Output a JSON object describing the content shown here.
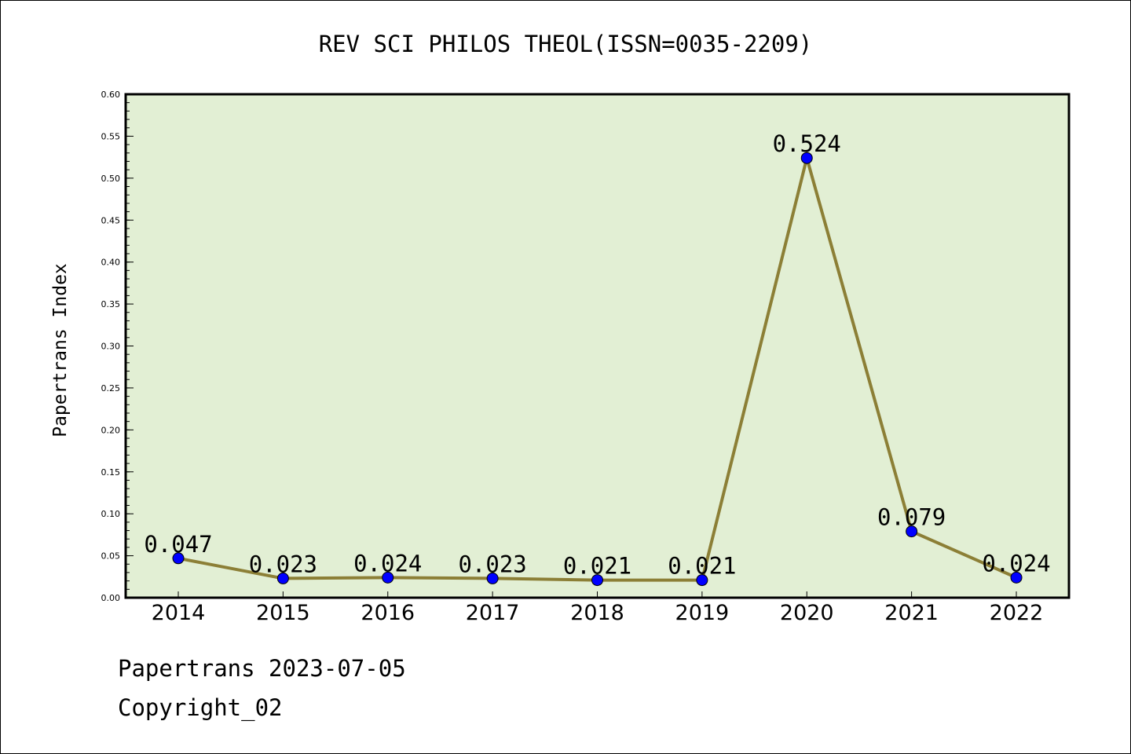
{
  "chart_data": {
    "type": "line",
    "title": "REV SCI PHILOS THEOL(ISSN=0035-2209)",
    "xlabel": "",
    "ylabel": "Papertrans Index",
    "categories": [
      "2014",
      "2015",
      "2016",
      "2017",
      "2018",
      "2019",
      "2020",
      "2021",
      "2022"
    ],
    "series": [
      {
        "values": [
          0.047,
          0.023,
          0.024,
          0.023,
          0.021,
          0.021,
          0.524,
          0.079,
          0.024
        ],
        "labels": [
          "0.047",
          "0.023",
          "0.024",
          "0.023",
          "0.021",
          "0.021",
          "0.524",
          "0.079",
          "0.024"
        ],
        "line_color": "#8c7f36",
        "marker_color": "#0000ff"
      }
    ],
    "ylim": [
      0,
      0.6
    ],
    "yticks": [
      "0.00",
      "0.05",
      "0.10",
      "0.15",
      "0.20",
      "0.25",
      "0.30",
      "0.35",
      "0.40",
      "0.45",
      "0.50",
      "0.55",
      "0.60"
    ],
    "plot_background": "#e2efd4",
    "grid": false,
    "legend": "none"
  },
  "footer": {
    "source": "Papertrans 2023-07-05",
    "copyright": "Copyright_02"
  }
}
